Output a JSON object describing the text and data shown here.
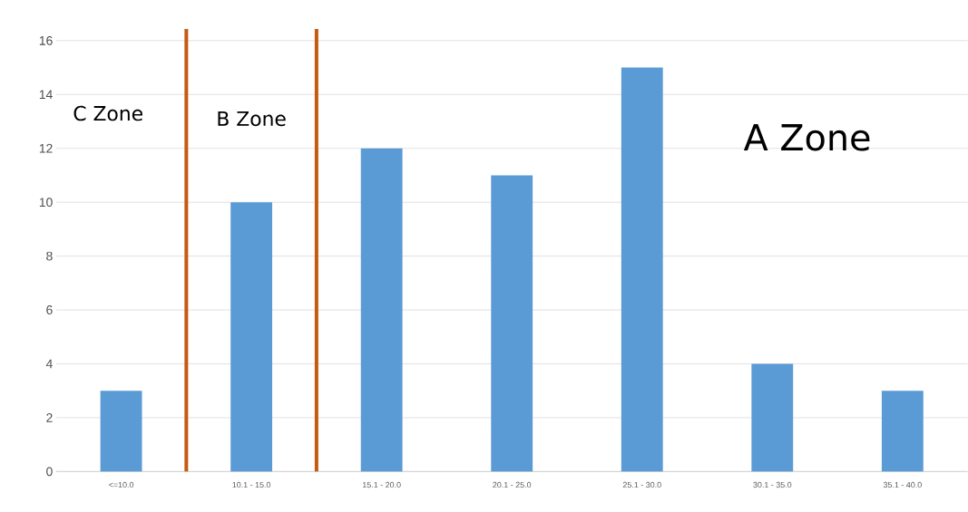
{
  "chart_data": {
    "type": "bar",
    "categories": [
      "<=10.0",
      "10.1 - 15.0",
      "15.1 - 20.0",
      "20.1 - 25.0",
      "25.1 - 30.0",
      "30.1 - 35.0",
      "35.1 - 40.0"
    ],
    "values": [
      3,
      10,
      12,
      11,
      15,
      4,
      3
    ],
    "color": "#5b9bd5",
    "ylim": [
      0,
      16
    ],
    "yticks": [
      0,
      2,
      4,
      6,
      8,
      10,
      12,
      14,
      16
    ],
    "grid": "y",
    "annotations": [
      "C Zone",
      "B Zone",
      "A Zone"
    ]
  }
}
